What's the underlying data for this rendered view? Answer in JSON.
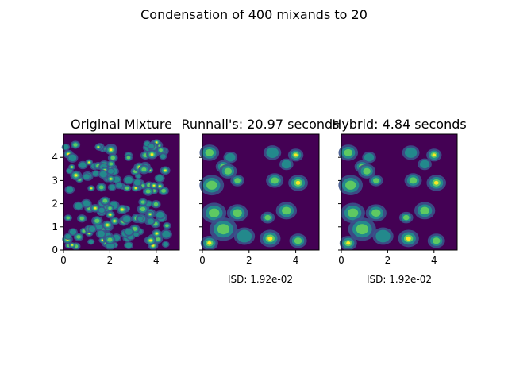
{
  "figure": {
    "suptitle": "Condensation of 400 mixands to 20"
  },
  "colors": {
    "background": "#440154",
    "low": "#3b528b",
    "mid": "#21908d",
    "high": "#5ec962",
    "peak": "#fde725"
  },
  "chart_data": [
    {
      "type": "heatmap",
      "title": "Original Mixture",
      "xlabel": "",
      "xlim": [
        0,
        5
      ],
      "ylim": [
        0,
        5
      ],
      "xticks": [
        "0",
        "2",
        "4"
      ],
      "yticks": [
        "0",
        "1",
        "2",
        "3",
        "4"
      ],
      "colormap": "viridis",
      "mixands": 400
    },
    {
      "type": "heatmap",
      "title": "Runnall's: 20.97 seconds",
      "xlabel": "ISD: 1.92e-02",
      "xlim": [
        0,
        5
      ],
      "ylim": [
        0,
        5
      ],
      "xticks": [
        "0",
        "2",
        "4"
      ],
      "colormap": "viridis",
      "mixands": 20
    },
    {
      "type": "heatmap",
      "title": "Hybrid: 4.84 seconds",
      "xlabel": "ISD: 1.92e-02",
      "xlim": [
        0,
        5
      ],
      "ylim": [
        0,
        5
      ],
      "xticks": [
        "0",
        "2",
        "4"
      ],
      "colormap": "viridis",
      "mixands": 20
    }
  ]
}
